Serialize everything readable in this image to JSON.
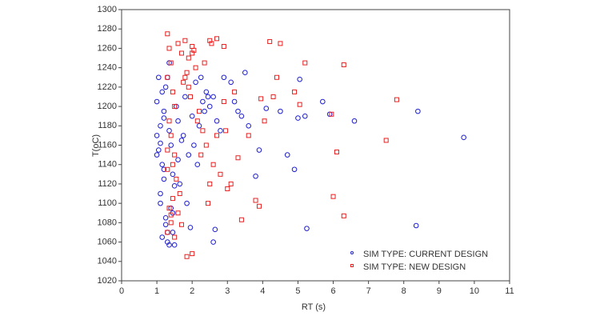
{
  "chart_data": {
    "type": "scatter",
    "x_label": "RT (s)",
    "y_label": "T(oC)",
    "xlim": [
      0,
      11
    ],
    "ylim": [
      1020,
      1300
    ],
    "xticks": [
      0,
      1,
      2,
      3,
      4,
      5,
      6,
      7,
      8,
      9,
      10,
      11
    ],
    "yticks": [
      1020,
      1040,
      1060,
      1080,
      1100,
      1120,
      1140,
      1160,
      1180,
      1200,
      1220,
      1240,
      1260,
      1280,
      1300
    ],
    "legend": "bottom-right",
    "series": [
      {
        "name": "SIM TYPE: CURRENT DESIGN",
        "color": "#1f1fd0",
        "marker": "circle",
        "x": [
          9.7,
          8.4,
          8.35,
          6.6,
          5.9,
          5.7,
          5.25,
          5.2,
          5.0,
          4.9,
          5.05,
          4.7,
          4.5,
          3.9,
          3.8,
          3.5,
          3.3,
          3.1,
          2.9,
          2.6,
          2.65,
          4.1,
          1.0,
          1.05,
          1.1,
          1.0,
          1.15,
          1.2,
          1.1,
          1.25,
          1.3,
          1.05,
          1.15,
          1.2,
          1.35,
          1.4,
          1.3,
          1.45,
          1.5,
          1.1,
          1.2,
          1.25,
          1.55,
          1.6,
          1.7,
          1.8,
          1.9,
          2.0,
          2.1,
          2.2,
          2.3,
          2.4,
          2.5,
          1.35,
          1.45,
          1.65,
          1.75,
          1.85,
          1.95,
          2.05,
          2.15,
          2.35,
          2.45,
          2.7,
          2.8,
          1.15,
          1.25,
          1.4,
          1.5,
          1.6,
          1.3,
          1.2,
          1.1,
          1.0,
          1.35,
          1.45,
          2.25,
          2.6,
          3.2,
          3.4,
          3.6
        ],
        "y": [
          1168,
          1195,
          1077,
          1185,
          1192,
          1205,
          1074,
          1190,
          1188,
          1135,
          1228,
          1150,
          1195,
          1155,
          1128,
          1235,
          1195,
          1225,
          1230,
          1060,
          1073,
          1198,
          1170,
          1155,
          1180,
          1205,
          1140,
          1125,
          1100,
          1085,
          1060,
          1230,
          1215,
          1195,
          1175,
          1160,
          1070,
          1090,
          1057,
          1110,
          1135,
          1220,
          1200,
          1185,
          1165,
          1210,
          1150,
          1190,
          1225,
          1180,
          1205,
          1215,
          1200,
          1245,
          1130,
          1120,
          1170,
          1100,
          1075,
          1160,
          1140,
          1195,
          1210,
          1185,
          1175,
          1065,
          1078,
          1095,
          1118,
          1145,
          1230,
          1188,
          1162,
          1150,
          1057,
          1070,
          1230,
          1210,
          1205,
          1190,
          1180
        ]
      },
      {
        "name": "SIM TYPE: NEW DESIGN",
        "color": "#e82020",
        "marker": "square",
        "x": [
          7.8,
          7.5,
          6.3,
          6.3,
          6.1,
          6.0,
          5.95,
          5.2,
          5.05,
          4.5,
          4.2,
          4.9,
          4.4,
          4.3,
          4.05,
          3.95,
          3.9,
          3.8,
          3.6,
          3.4,
          3.3,
          3.1,
          2.9,
          3.0,
          2.7,
          2.0,
          1.85,
          2.5,
          1.3,
          1.35,
          1.4,
          1.3,
          1.45,
          1.5,
          1.35,
          1.4,
          1.3,
          1.45,
          1.6,
          1.7,
          1.8,
          1.9,
          2.0,
          2.1,
          1.75,
          1.85,
          1.95,
          2.05,
          2.2,
          2.3,
          2.4,
          2.6,
          2.8,
          1.55,
          1.65,
          1.35,
          1.4,
          1.5,
          1.3,
          1.45,
          2.15,
          2.25,
          2.35,
          2.5,
          2.7,
          2.9,
          3.2,
          1.6,
          1.7,
          1.8,
          1.9,
          2.0,
          1.3,
          1.4,
          1.5,
          2.45,
          2.55,
          2.95
        ],
        "y": [
          1207,
          1165,
          1243,
          1087,
          1153,
          1107,
          1192,
          1245,
          1202,
          1265,
          1267,
          1215,
          1230,
          1210,
          1185,
          1208,
          1097,
          1103,
          1170,
          1083,
          1147,
          1120,
          1262,
          1115,
          1270,
          1048,
          1045,
          1268,
          1275,
          1260,
          1245,
          1230,
          1215,
          1200,
          1185,
          1170,
          1155,
          1140,
          1265,
          1255,
          1268,
          1250,
          1262,
          1240,
          1225,
          1235,
          1210,
          1258,
          1195,
          1175,
          1160,
          1140,
          1130,
          1125,
          1110,
          1095,
          1080,
          1065,
          1070,
          1105,
          1185,
          1150,
          1245,
          1120,
          1170,
          1205,
          1215,
          1090,
          1078,
          1230,
          1220,
          1255,
          1135,
          1088,
          1150,
          1100,
          1265,
          1175
        ]
      }
    ]
  }
}
